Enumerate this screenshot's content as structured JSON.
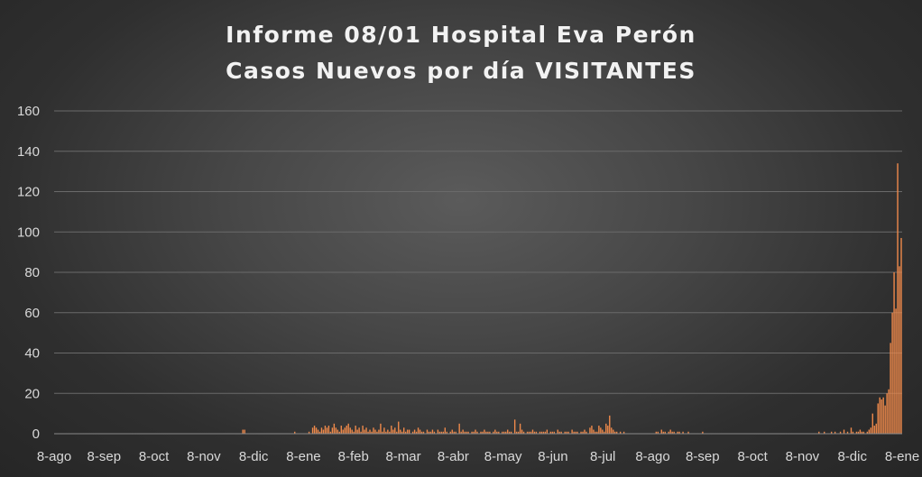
{
  "chart_data": {
    "type": "bar",
    "title": "Informe 08/01 Hospital Eva Perón",
    "subtitle": "Casos Nuevos por día VISITANTES",
    "xlabel": "",
    "ylabel": "",
    "ylim": [
      0,
      160
    ],
    "yticks": [
      "0",
      "20",
      "40",
      "60",
      "80",
      "100",
      "120",
      "140",
      "160"
    ],
    "xticks": [
      "8-ago",
      "8-sep",
      "8-oct",
      "8-nov",
      "8-dic",
      "8-ene",
      "8-feb",
      "8-mar",
      "8-abr",
      "8-may",
      "8-jun",
      "8-jul",
      "8-ago",
      "8-sep",
      "8-oct",
      "8-nov",
      "8-dic",
      "8-ene"
    ],
    "grid": true,
    "legend": "none",
    "bar_color": "#f08a4b",
    "values": [
      0,
      0,
      0,
      0,
      0,
      0,
      0,
      0,
      0,
      0,
      0,
      0,
      0,
      0,
      0,
      0,
      0,
      0,
      0,
      0,
      0,
      0,
      0,
      0,
      0,
      0,
      0,
      0,
      0,
      0,
      0,
      0,
      0,
      0,
      0,
      0,
      0,
      0,
      0,
      0,
      0,
      0,
      0,
      0,
      0,
      0,
      0,
      0,
      0,
      0,
      0,
      0,
      0,
      0,
      0,
      0,
      0,
      0,
      0,
      0,
      0,
      0,
      0,
      0,
      0,
      0,
      0,
      0,
      0,
      0,
      0,
      0,
      0,
      0,
      0,
      0,
      0,
      0,
      0,
      0,
      0,
      0,
      0,
      0,
      0,
      0,
      0,
      0,
      0,
      0,
      0,
      0,
      0,
      0,
      0,
      0,
      0,
      0,
      0,
      0,
      0,
      0,
      0,
      0,
      0,
      2,
      2,
      0,
      0,
      0,
      0,
      0,
      0,
      0,
      0,
      0,
      0,
      0,
      0,
      0,
      0,
      0,
      0,
      0,
      0,
      0,
      0,
      0,
      0,
      0,
      0,
      0,
      0,
      0,
      1,
      0,
      0,
      0,
      0,
      0,
      0,
      0,
      1,
      0,
      3,
      4,
      3,
      2,
      1,
      3,
      2,
      4,
      3,
      4,
      1,
      3,
      5,
      3,
      2,
      1,
      4,
      2,
      3,
      4,
      5,
      3,
      2,
      1,
      4,
      2,
      3,
      1,
      4,
      2,
      3,
      1,
      2,
      1,
      3,
      2,
      1,
      2,
      5,
      1,
      3,
      1,
      2,
      1,
      4,
      2,
      3,
      1,
      6,
      2,
      1,
      3,
      1,
      2,
      2,
      0,
      1,
      2,
      1,
      3,
      2,
      1,
      1,
      0,
      2,
      1,
      1,
      2,
      1,
      0,
      2,
      1,
      1,
      1,
      3,
      1,
      0,
      1,
      2,
      1,
      1,
      0,
      5,
      1,
      2,
      1,
      1,
      1,
      0,
      1,
      1,
      2,
      1,
      0,
      1,
      1,
      2,
      1,
      1,
      1,
      0,
      1,
      2,
      1,
      1,
      0,
      1,
      1,
      1,
      2,
      1,
      1,
      0,
      7,
      1,
      1,
      5,
      2,
      1,
      0,
      1,
      1,
      1,
      2,
      1,
      1,
      0,
      1,
      1,
      1,
      1,
      2,
      0,
      1,
      1,
      1,
      0,
      2,
      1,
      1,
      0,
      1,
      1,
      1,
      0,
      2,
      1,
      1,
      1,
      0,
      1,
      1,
      2,
      1,
      0,
      3,
      4,
      2,
      1,
      1,
      4,
      3,
      2,
      1,
      5,
      4,
      9,
      3,
      2,
      1,
      1,
      0,
      1,
      0,
      1,
      0,
      0,
      0,
      0,
      0,
      0,
      0,
      0,
      0,
      0,
      0,
      0,
      0,
      0,
      0,
      0,
      0,
      1,
      1,
      0,
      2,
      1,
      1,
      0,
      1,
      2,
      1,
      1,
      0,
      1,
      1,
      0,
      1,
      0,
      0,
      1,
      0,
      0,
      0,
      0,
      0,
      0,
      0,
      1,
      0,
      0,
      0,
      0,
      0,
      0,
      0,
      0,
      0,
      0,
      0,
      0,
      0,
      0,
      0,
      0,
      0,
      0,
      0,
      0,
      0,
      0,
      0,
      0,
      0,
      0,
      0,
      0,
      0,
      0,
      0,
      0,
      0,
      0,
      0,
      0,
      0,
      0,
      0,
      0,
      0,
      0,
      0,
      0,
      0,
      0,
      0,
      0,
      0,
      0,
      0,
      0,
      0,
      0,
      0,
      0,
      0,
      0,
      0,
      0,
      0,
      0,
      0,
      0,
      1,
      0,
      0,
      1,
      0,
      0,
      0,
      1,
      0,
      1,
      0,
      0,
      1,
      0,
      2,
      0,
      1,
      0,
      3,
      1,
      0,
      1,
      1,
      2,
      1,
      1,
      0,
      1,
      2,
      3,
      10,
      4,
      5,
      15,
      18,
      17,
      18,
      14,
      20,
      22,
      45,
      60,
      80,
      62,
      134,
      83,
      97
    ]
  }
}
